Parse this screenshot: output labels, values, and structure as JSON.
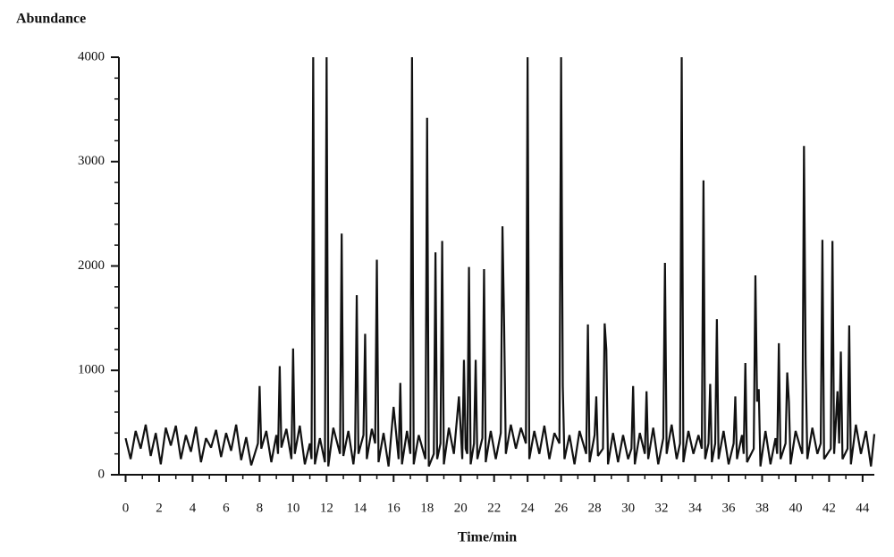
{
  "chart_data": {
    "type": "line",
    "ylabel": "Abundance",
    "xlabel": "Time/min",
    "xlim": [
      -0.4,
      44.7
    ],
    "ylim": [
      0,
      4000
    ],
    "xticks": [
      0,
      2,
      4,
      6,
      8,
      10,
      12,
      14,
      16,
      18,
      20,
      22,
      24,
      26,
      28,
      30,
      32,
      34,
      36,
      38,
      40,
      42,
      44
    ],
    "yticks": [
      0,
      1000,
      2000,
      3000,
      4000
    ],
    "xminorticks": [
      1,
      3,
      5,
      7,
      9,
      11,
      13,
      15,
      17,
      19,
      21,
      23,
      25,
      27,
      29,
      31,
      33,
      35,
      37,
      39,
      41,
      43
    ],
    "yminorticks": [
      200,
      400,
      600,
      800,
      1200,
      1400,
      1600,
      1800,
      2200,
      2400,
      2600,
      2800,
      3200,
      3400,
      3600,
      3800
    ],
    "x": [
      0,
      0.3,
      0.6,
      0.9,
      1.2,
      1.5,
      1.8,
      2.1,
      2.4,
      2.7,
      3.0,
      3.3,
      3.6,
      3.9,
      4.2,
      4.5,
      4.8,
      5.1,
      5.4,
      5.7,
      6.0,
      6.3,
      6.6,
      6.9,
      7.2,
      7.5,
      7.9,
      8.0,
      8.1,
      8.4,
      8.7,
      9.0,
      9.1,
      9.2,
      9.3,
      9.6,
      9.9,
      10.0,
      10.1,
      10.4,
      10.7,
      11.0,
      11.1,
      11.2,
      11.3,
      11.6,
      11.9,
      12.0,
      12.1,
      12.4,
      12.8,
      12.9,
      13.0,
      13.3,
      13.6,
      13.7,
      13.8,
      13.9,
      14.2,
      14.3,
      14.4,
      14.7,
      14.9,
      15.0,
      15.1,
      15.4,
      15.7,
      16.0,
      16.3,
      16.4,
      16.5,
      16.8,
      17.0,
      17.1,
      17.2,
      17.5,
      17.9,
      18.0,
      18.1,
      18.4,
      18.5,
      18.6,
      18.8,
      18.9,
      19.0,
      19.3,
      19.6,
      19.9,
      20.1,
      20.2,
      20.3,
      20.4,
      20.5,
      20.6,
      20.8,
      20.9,
      21.0,
      21.3,
      21.4,
      21.5,
      21.8,
      22.1,
      22.4,
      22.5,
      22.6,
      22.7,
      23.0,
      23.3,
      23.6,
      23.9,
      24.0,
      24.1,
      24.4,
      24.7,
      25.0,
      25.3,
      25.6,
      25.9,
      26.0,
      26.1,
      26.2,
      26.5,
      26.8,
      27.1,
      27.5,
      27.6,
      27.7,
      28.0,
      28.1,
      28.2,
      28.5,
      28.6,
      28.7,
      28.8,
      29.1,
      29.4,
      29.7,
      30.0,
      30.2,
      30.3,
      30.4,
      30.7,
      31.0,
      31.1,
      31.2,
      31.5,
      31.8,
      32.1,
      32.2,
      32.3,
      32.6,
      32.9,
      33.1,
      33.2,
      33.3,
      33.6,
      33.9,
      34.2,
      34.4,
      34.5,
      34.6,
      34.8,
      34.9,
      35.0,
      35.2,
      35.3,
      35.4,
      35.7,
      36.0,
      36.3,
      36.4,
      36.5,
      36.8,
      36.9,
      37.0,
      37.1,
      37.5,
      37.6,
      37.7,
      37.8,
      37.9,
      38.2,
      38.5,
      38.8,
      38.9,
      39.0,
      39.1,
      39.4,
      39.5,
      39.6,
      39.7,
      40.0,
      40.3,
      40.4,
      40.5,
      40.6,
      40.7,
      41.0,
      41.3,
      41.5,
      41.6,
      41.7,
      42.1,
      42.2,
      42.3,
      42.5,
      42.6,
      42.7,
      42.8,
      43.1,
      43.2,
      43.3,
      43.6,
      43.9,
      44.2,
      44.5,
      44.7
    ],
    "series": [
      {
        "color": "#111111",
        "values": [
          350,
          150,
          420,
          250,
          480,
          180,
          400,
          100,
          450,
          280,
          470,
          150,
          380,
          220,
          460,
          120,
          350,
          260,
          430,
          170,
          400,
          230,
          480,
          140,
          360,
          90,
          300,
          850,
          250,
          420,
          120,
          380,
          200,
          1040,
          260,
          440,
          150,
          1210,
          200,
          470,
          100,
          300,
          150,
          4000,
          100,
          350,
          120,
          4000,
          80,
          450,
          200,
          2310,
          180,
          420,
          100,
          250,
          1720,
          200,
          380,
          1350,
          150,
          440,
          300,
          2060,
          120,
          400,
          80,
          650,
          150,
          880,
          100,
          420,
          200,
          4000,
          100,
          380,
          150,
          3420,
          80,
          200,
          2130,
          150,
          300,
          2240,
          100,
          450,
          200,
          750,
          150,
          1100,
          250,
          200,
          1990,
          100,
          300,
          1100,
          150,
          350,
          1970,
          120,
          420,
          150,
          400,
          2380,
          1420,
          200,
          480,
          250,
          450,
          300,
          4000,
          150,
          420,
          200,
          470,
          150,
          400,
          300,
          4000,
          850,
          150,
          380,
          100,
          420,
          200,
          1440,
          120,
          380,
          750,
          180,
          250,
          1450,
          1200,
          100,
          400,
          120,
          380,
          150,
          250,
          850,
          100,
          400,
          200,
          800,
          150,
          450,
          100,
          350,
          2030,
          200,
          480,
          150,
          300,
          4000,
          120,
          420,
          200,
          380,
          250,
          2820,
          150,
          300,
          870,
          120,
          300,
          1490,
          150,
          420,
          100,
          300,
          750,
          150,
          380,
          200,
          1070,
          120,
          250,
          1910,
          700,
          820,
          80,
          420,
          100,
          350,
          200,
          1260,
          150,
          300,
          980,
          700,
          100,
          420,
          250,
          200,
          3150,
          1050,
          150,
          450,
          200,
          300,
          2250,
          150,
          250,
          2240,
          200,
          800,
          300,
          1180,
          150,
          250,
          1430,
          100,
          480,
          200,
          420,
          80,
          390
        ]
      }
    ]
  }
}
